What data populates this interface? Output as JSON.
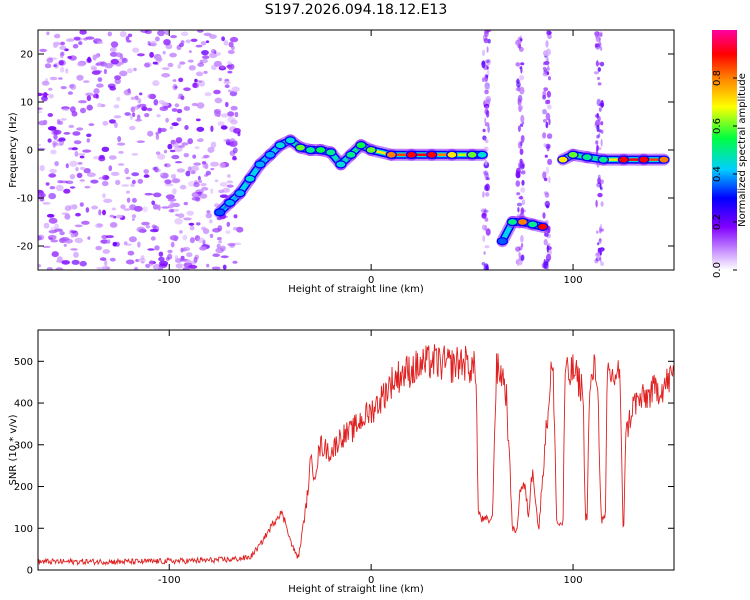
{
  "chart_data": [
    {
      "type": "heatmap",
      "title": "S197.2026.094.18.12.E13",
      "xlabel": "Height of straight line (km)",
      "ylabel": "Frequency (Hz)",
      "xlim": [
        -165,
        150
      ],
      "ylim": [
        -25,
        25
      ],
      "xticks": [
        -100,
        0,
        100
      ],
      "yticks": [
        -20,
        -10,
        0,
        10,
        20
      ],
      "colorbar": {
        "label": "Normalized spectral amplitude",
        "range": [
          0,
          1
        ],
        "ticks": [
          "0.0",
          "0.2",
          "0.4",
          "0.6",
          "0.8"
        ],
        "colors": [
          "#ffffff",
          "#8000ff",
          "#0000ff",
          "#00d0ff",
          "#00ff40",
          "#ffff00",
          "#ff8000",
          "#ff0000",
          "#ff00a0"
        ]
      },
      "noise_region": {
        "x_range": [
          -165,
          -65
        ],
        "y_range": [
          -25,
          25
        ],
        "amplitude": 0.15
      },
      "vertical_noise_bands_x": [
        57,
        74,
        87,
        113
      ],
      "ridge": [
        {
          "x": -75,
          "y": -13,
          "amplitude": 0.35
        },
        {
          "x": -70,
          "y": -11,
          "amplitude": 0.4
        },
        {
          "x": -65,
          "y": -9,
          "amplitude": 0.4
        },
        {
          "x": -60,
          "y": -6,
          "amplitude": 0.45
        },
        {
          "x": -55,
          "y": -3,
          "amplitude": 0.4
        },
        {
          "x": -50,
          "y": -1,
          "amplitude": 0.4
        },
        {
          "x": -45,
          "y": 1,
          "amplitude": 0.45
        },
        {
          "x": -40,
          "y": 2,
          "amplitude": 0.45
        },
        {
          "x": -35,
          "y": 0.5,
          "amplitude": 0.6
        },
        {
          "x": -30,
          "y": 0,
          "amplitude": 0.5
        },
        {
          "x": -25,
          "y": 0,
          "amplitude": 0.55
        },
        {
          "x": -20,
          "y": -0.5,
          "amplitude": 0.5
        },
        {
          "x": -15,
          "y": -3,
          "amplitude": 0.45
        },
        {
          "x": -10,
          "y": -1,
          "amplitude": 0.5
        },
        {
          "x": -5,
          "y": 1,
          "amplitude": 0.55
        },
        {
          "x": 0,
          "y": 0,
          "amplitude": 0.6
        },
        {
          "x": 10,
          "y": -1,
          "amplitude": 0.8
        },
        {
          "x": 20,
          "y": -1,
          "amplitude": 0.9
        },
        {
          "x": 30,
          "y": -1,
          "amplitude": 0.9
        },
        {
          "x": 40,
          "y": -1,
          "amplitude": 0.7
        },
        {
          "x": 50,
          "y": -1,
          "amplitude": 0.6
        },
        {
          "x": 55,
          "y": -1,
          "amplitude": 0.45
        },
        {
          "x": 65,
          "y": -19,
          "amplitude": 0.35
        },
        {
          "x": 70,
          "y": -15,
          "amplitude": 0.5
        },
        {
          "x": 75,
          "y": -15,
          "amplitude": 0.8
        },
        {
          "x": 80,
          "y": -15.5,
          "amplitude": 0.5
        },
        {
          "x": 85,
          "y": -16,
          "amplitude": 0.9
        },
        {
          "x": 95,
          "y": -2,
          "amplitude": 0.7
        },
        {
          "x": 100,
          "y": -1,
          "amplitude": 0.6
        },
        {
          "x": 107,
          "y": -1.5,
          "amplitude": 0.5
        },
        {
          "x": 115,
          "y": -2,
          "amplitude": 0.5
        },
        {
          "x": 125,
          "y": -2,
          "amplitude": 0.9
        },
        {
          "x": 135,
          "y": -2,
          "amplitude": 0.9
        },
        {
          "x": 145,
          "y": -2,
          "amplitude": 0.8
        }
      ]
    },
    {
      "type": "line",
      "xlabel": "Height of straight line (km)",
      "ylabel": "SNR (10 * v/v)",
      "xlim": [
        -165,
        150
      ],
      "ylim": [
        0,
        575
      ],
      "xticks": [
        -100,
        0,
        100
      ],
      "yticks": [
        0,
        100,
        200,
        300,
        400,
        500
      ],
      "color": "#e02020",
      "series": [
        {
          "name": "SNR",
          "x": [
            -165,
            -140,
            -115,
            -90,
            -70,
            -60,
            -55,
            -50,
            -45,
            -42,
            -40,
            -38,
            -36,
            -32,
            -30,
            -28,
            -25,
            -20,
            -15,
            -10,
            -5,
            0,
            5,
            10,
            15,
            20,
            25,
            30,
            35,
            40,
            45,
            50,
            52,
            53,
            55,
            60,
            62,
            65,
            67,
            70,
            72,
            74,
            76,
            78,
            80,
            83,
            86,
            88,
            89,
            90,
            92,
            95,
            96,
            98,
            100,
            103,
            105,
            106,
            107,
            108,
            110,
            112,
            114,
            116,
            117,
            118,
            120,
            123,
            125,
            126,
            128,
            130,
            135,
            140,
            145,
            150
          ],
          "y": [
            20,
            20,
            20,
            22,
            25,
            30,
            60,
            100,
            140,
            110,
            70,
            45,
            30,
            160,
            260,
            230,
            300,
            280,
            320,
            330,
            360,
            380,
            410,
            450,
            470,
            480,
            490,
            500,
            495,
            490,
            500,
            485,
            480,
            140,
            120,
            120,
            480,
            470,
            420,
            100,
            90,
            200,
            200,
            130,
            250,
            90,
            300,
            400,
            480,
            480,
            110,
            110,
            480,
            460,
            480,
            450,
            430,
            130,
            130,
            400,
            480,
            470,
            120,
            120,
            480,
            470,
            460,
            480,
            70,
            320,
            360,
            400,
            410,
            430,
            440,
            470
          ]
        }
      ]
    }
  ]
}
